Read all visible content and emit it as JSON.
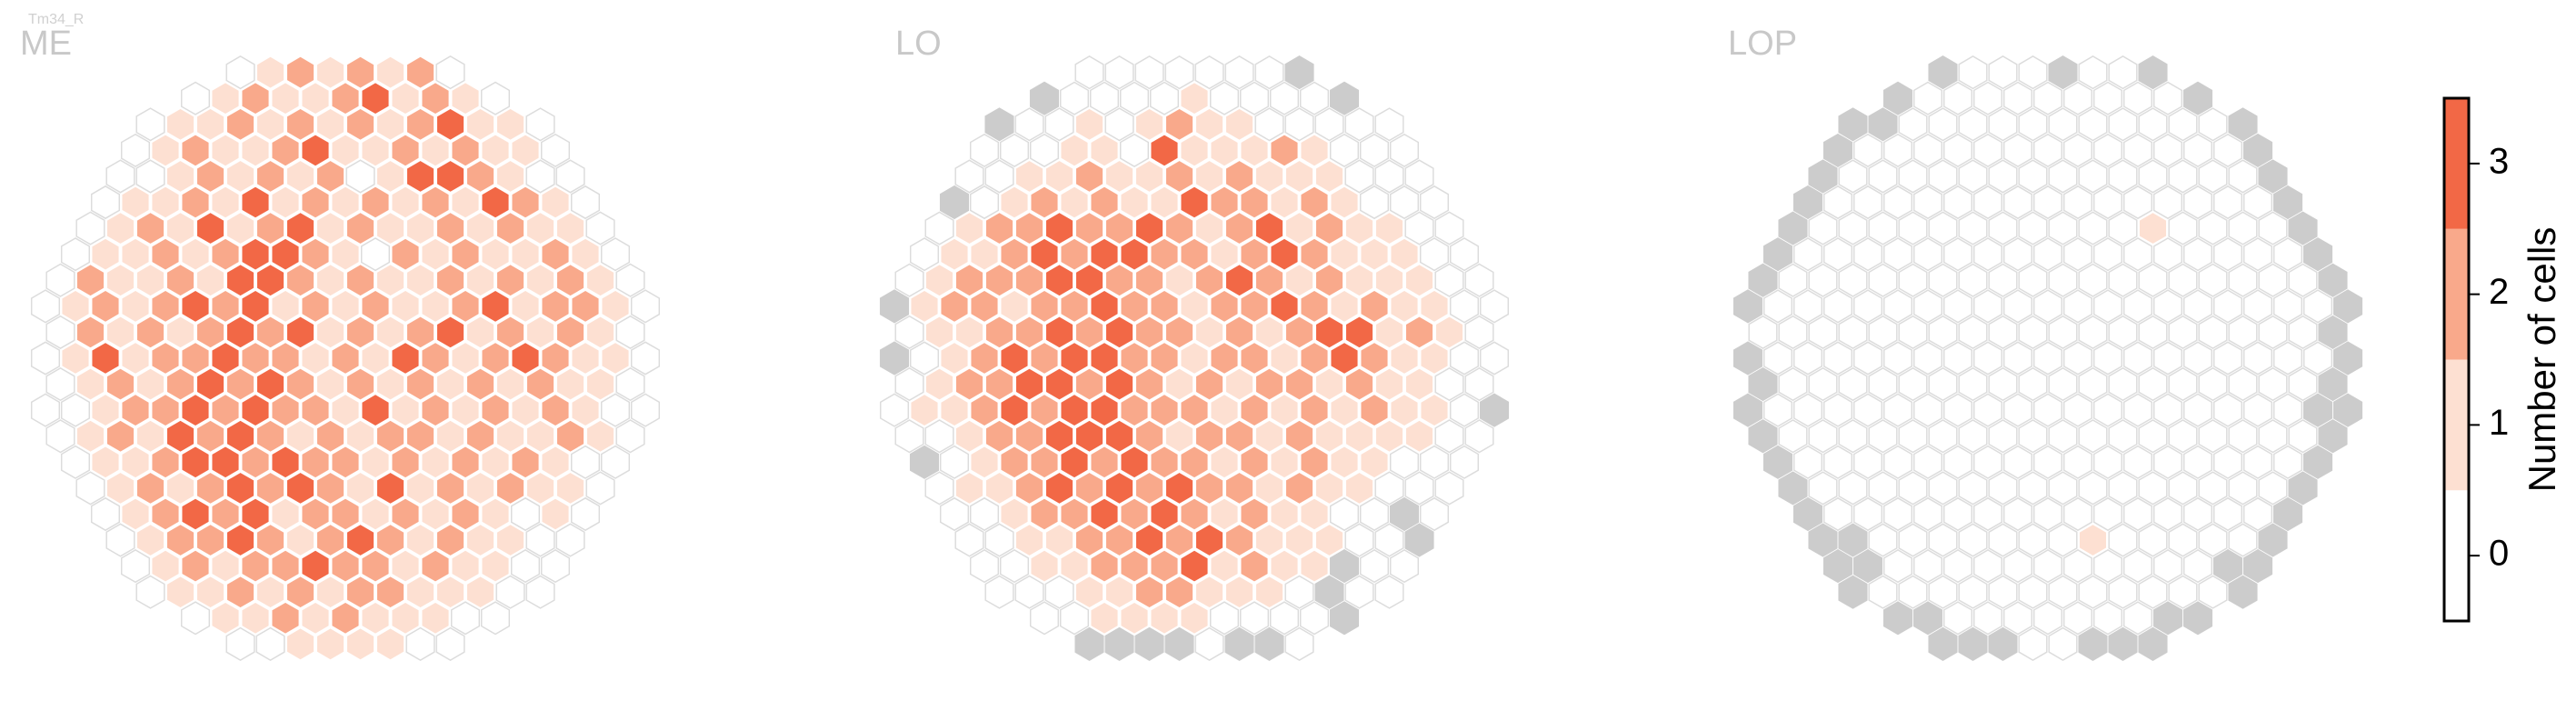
{
  "chart_data": {
    "type": "hexbin",
    "title": "Tm34_R",
    "colorbar": {
      "label": "Number of cells",
      "lim": [
        -0.5,
        3.5
      ],
      "ticks": [
        0,
        1,
        2,
        3
      ],
      "colors": [
        "#ffffff",
        "#fde0d2",
        "#f9a98b",
        "#f26846"
      ]
    },
    "missing_color": "#cccccc",
    "panels": [
      {
        "title": "ME",
        "rows": [
          [
            0,
            1,
            2,
            1,
            2,
            1,
            2,
            0
          ],
          [
            0,
            1,
            2,
            1,
            1,
            2,
            3,
            1,
            2,
            1,
            0
          ],
          [
            0,
            1,
            1,
            2,
            1,
            2,
            1,
            2,
            1,
            2,
            3,
            1,
            1,
            0
          ],
          [
            0,
            1,
            2,
            1,
            1,
            2,
            3,
            1,
            1,
            2,
            1,
            2,
            1,
            1,
            0
          ],
          [
            0,
            0,
            1,
            2,
            1,
            2,
            1,
            2,
            0,
            1,
            3,
            3,
            2,
            1,
            0,
            0
          ],
          [
            0,
            1,
            1,
            2,
            1,
            3,
            1,
            2,
            1,
            2,
            1,
            2,
            1,
            3,
            2,
            1,
            0
          ],
          [
            0,
            1,
            2,
            1,
            3,
            1,
            2,
            3,
            1,
            2,
            1,
            1,
            2,
            1,
            2,
            1,
            1,
            0
          ],
          [
            0,
            1,
            1,
            2,
            1,
            2,
            3,
            3,
            2,
            1,
            0,
            2,
            1,
            2,
            1,
            1,
            2,
            1,
            0
          ],
          [
            0,
            2,
            1,
            1,
            2,
            1,
            3,
            3,
            2,
            1,
            2,
            1,
            1,
            2,
            1,
            2,
            1,
            2,
            1,
            0
          ],
          [
            0,
            1,
            2,
            1,
            2,
            3,
            2,
            3,
            1,
            2,
            1,
            2,
            1,
            1,
            2,
            3,
            1,
            2,
            2,
            1,
            0
          ],
          [
            0,
            2,
            1,
            2,
            1,
            2,
            3,
            2,
            3,
            1,
            2,
            1,
            2,
            3,
            1,
            2,
            1,
            2,
            1,
            0
          ],
          [
            0,
            1,
            3,
            1,
            2,
            2,
            3,
            2,
            2,
            1,
            2,
            1,
            3,
            2,
            1,
            2,
            3,
            2,
            1,
            1,
            0
          ],
          [
            0,
            1,
            2,
            1,
            2,
            3,
            2,
            3,
            2,
            1,
            2,
            1,
            2,
            1,
            2,
            1,
            2,
            1,
            1,
            0
          ],
          [
            0,
            0,
            1,
            2,
            2,
            3,
            2,
            3,
            2,
            2,
            1,
            3,
            1,
            2,
            1,
            2,
            1,
            2,
            1,
            0,
            0
          ],
          [
            0,
            1,
            2,
            1,
            3,
            2,
            3,
            2,
            1,
            2,
            1,
            2,
            2,
            1,
            2,
            1,
            1,
            2,
            1,
            0
          ],
          [
            0,
            1,
            1,
            2,
            3,
            3,
            2,
            3,
            2,
            2,
            1,
            2,
            1,
            2,
            1,
            2,
            1,
            0,
            0
          ],
          [
            0,
            1,
            2,
            1,
            2,
            3,
            2,
            3,
            2,
            1,
            3,
            1,
            2,
            1,
            2,
            1,
            1,
            0
          ],
          [
            0,
            1,
            2,
            3,
            2,
            3,
            1,
            2,
            2,
            1,
            2,
            1,
            2,
            1,
            0,
            1,
            0
          ],
          [
            0,
            1,
            2,
            2,
            3,
            2,
            1,
            2,
            3,
            2,
            1,
            2,
            1,
            1,
            0,
            0
          ],
          [
            0,
            1,
            2,
            1,
            2,
            2,
            3,
            2,
            2,
            1,
            2,
            1,
            1,
            0,
            0
          ],
          [
            0,
            1,
            1,
            2,
            1,
            2,
            1,
            2,
            2,
            1,
            1,
            1,
            0,
            0
          ],
          [
            0,
            1,
            1,
            2,
            1,
            2,
            1,
            1,
            1,
            0,
            0
          ],
          [
            0,
            0,
            1,
            1,
            1,
            1,
            0,
            0
          ]
        ]
      },
      {
        "title": "LO",
        "rows": [
          [
            0,
            0,
            0,
            0,
            0,
            0,
            0,
            null
          ],
          [
            null,
            0,
            0,
            0,
            0,
            1,
            0,
            0,
            0,
            0,
            null
          ],
          [
            null,
            0,
            0,
            1,
            0,
            1,
            2,
            1,
            1,
            0,
            0,
            0,
            0,
            0
          ],
          [
            0,
            0,
            0,
            1,
            1,
            0,
            3,
            1,
            1,
            1,
            2,
            1,
            0,
            0,
            0
          ],
          [
            0,
            0,
            1,
            1,
            2,
            1,
            1,
            2,
            1,
            2,
            1,
            1,
            1,
            0,
            0,
            0
          ],
          [
            null,
            0,
            1,
            2,
            1,
            2,
            1,
            1,
            3,
            2,
            2,
            1,
            2,
            1,
            0,
            0,
            0
          ],
          [
            0,
            1,
            2,
            2,
            3,
            2,
            2,
            3,
            2,
            1,
            2,
            3,
            1,
            2,
            1,
            1,
            0,
            0
          ],
          [
            0,
            1,
            1,
            2,
            3,
            2,
            3,
            3,
            2,
            2,
            1,
            2,
            3,
            2,
            1,
            1,
            1,
            0,
            0
          ],
          [
            0,
            1,
            2,
            2,
            2,
            3,
            3,
            2,
            2,
            1,
            2,
            3,
            2,
            1,
            2,
            1,
            1,
            1,
            0,
            0
          ],
          [
            null,
            1,
            2,
            2,
            1,
            2,
            2,
            3,
            2,
            2,
            1,
            2,
            2,
            3,
            2,
            1,
            2,
            1,
            1,
            0,
            0
          ],
          [
            0,
            1,
            1,
            2,
            2,
            3,
            2,
            3,
            2,
            2,
            1,
            2,
            1,
            2,
            3,
            3,
            1,
            2,
            1,
            0
          ],
          [
            null,
            0,
            1,
            2,
            3,
            2,
            3,
            3,
            2,
            2,
            1,
            2,
            2,
            1,
            2,
            3,
            2,
            1,
            1,
            0,
            0
          ],
          [
            0,
            1,
            2,
            2,
            3,
            3,
            2,
            3,
            2,
            1,
            2,
            1,
            2,
            2,
            1,
            2,
            1,
            1,
            0,
            0
          ],
          [
            0,
            1,
            1,
            2,
            3,
            2,
            3,
            3,
            2,
            2,
            2,
            1,
            2,
            1,
            2,
            1,
            2,
            1,
            1,
            0,
            null
          ],
          [
            0,
            0,
            1,
            2,
            2,
            3,
            3,
            3,
            2,
            1,
            2,
            2,
            1,
            2,
            1,
            1,
            1,
            1,
            0,
            0
          ],
          [
            null,
            0,
            1,
            2,
            2,
            3,
            2,
            3,
            2,
            2,
            1,
            2,
            1,
            2,
            1,
            1,
            0,
            0,
            0
          ],
          [
            0,
            1,
            1,
            2,
            3,
            2,
            3,
            2,
            3,
            2,
            2,
            1,
            2,
            1,
            1,
            0,
            0,
            0
          ],
          [
            0,
            0,
            1,
            2,
            2,
            3,
            2,
            3,
            2,
            1,
            2,
            1,
            1,
            0,
            0,
            null,
            0
          ],
          [
            0,
            0,
            1,
            1,
            2,
            2,
            3,
            2,
            3,
            2,
            1,
            1,
            1,
            0,
            0,
            null
          ],
          [
            0,
            0,
            1,
            1,
            2,
            2,
            2,
            3,
            1,
            2,
            1,
            1,
            null,
            0,
            0
          ],
          [
            0,
            0,
            0,
            1,
            1,
            2,
            2,
            1,
            1,
            1,
            0,
            null,
            0,
            0
          ],
          [
            0,
            0,
            1,
            1,
            1,
            1,
            0,
            0,
            0,
            0,
            null
          ],
          [
            null,
            null,
            null,
            null,
            0,
            null,
            null,
            0
          ]
        ]
      },
      {
        "title": "LOP",
        "rows": [
          [
            null,
            0,
            0,
            0,
            null,
            0,
            0,
            null
          ],
          [
            null,
            0,
            0,
            0,
            0,
            0,
            0,
            0,
            0,
            0,
            null
          ],
          [
            null,
            null,
            0,
            0,
            0,
            0,
            0,
            0,
            0,
            0,
            0,
            0,
            0,
            null
          ],
          [
            null,
            0,
            0,
            0,
            0,
            0,
            0,
            0,
            0,
            0,
            0,
            0,
            0,
            0,
            null
          ],
          [
            null,
            0,
            0,
            0,
            0,
            0,
            0,
            0,
            0,
            0,
            0,
            0,
            0,
            0,
            0,
            null
          ],
          [
            null,
            0,
            0,
            0,
            0,
            0,
            0,
            0,
            0,
            0,
            0,
            0,
            0,
            0,
            0,
            0,
            null
          ],
          [
            null,
            0,
            0,
            0,
            0,
            0,
            0,
            0,
            0,
            0,
            0,
            0,
            1,
            0,
            0,
            0,
            0,
            null
          ],
          [
            null,
            0,
            0,
            0,
            0,
            0,
            0,
            0,
            0,
            0,
            0,
            0,
            0,
            0,
            0,
            0,
            0,
            0,
            null
          ],
          [
            null,
            0,
            0,
            0,
            0,
            0,
            0,
            0,
            0,
            0,
            0,
            0,
            0,
            0,
            0,
            0,
            0,
            0,
            0,
            null
          ],
          [
            null,
            0,
            0,
            0,
            0,
            0,
            0,
            0,
            0,
            0,
            0,
            0,
            0,
            0,
            0,
            0,
            0,
            0,
            0,
            0,
            null
          ],
          [
            0,
            0,
            0,
            0,
            0,
            0,
            0,
            0,
            0,
            0,
            0,
            0,
            0,
            0,
            0,
            0,
            0,
            0,
            0,
            null
          ],
          [
            null,
            0,
            0,
            0,
            0,
            0,
            0,
            0,
            0,
            0,
            0,
            0,
            0,
            0,
            0,
            0,
            0,
            0,
            0,
            0,
            null
          ],
          [
            null,
            0,
            0,
            0,
            0,
            0,
            0,
            0,
            0,
            0,
            0,
            0,
            0,
            0,
            0,
            0,
            0,
            0,
            0,
            null
          ],
          [
            null,
            0,
            0,
            0,
            0,
            0,
            0,
            0,
            0,
            0,
            0,
            0,
            0,
            0,
            0,
            0,
            0,
            0,
            0,
            null,
            null
          ],
          [
            null,
            0,
            0,
            0,
            0,
            0,
            0,
            0,
            0,
            0,
            0,
            0,
            0,
            0,
            0,
            0,
            0,
            0,
            0,
            null
          ],
          [
            null,
            0,
            0,
            0,
            0,
            0,
            0,
            0,
            0,
            0,
            0,
            0,
            0,
            0,
            0,
            0,
            0,
            0,
            null
          ],
          [
            null,
            0,
            0,
            0,
            0,
            0,
            0,
            0,
            0,
            0,
            0,
            0,
            0,
            0,
            0,
            0,
            0,
            null
          ],
          [
            null,
            0,
            0,
            0,
            0,
            0,
            0,
            0,
            0,
            0,
            0,
            0,
            0,
            0,
            0,
            0,
            null
          ],
          [
            null,
            null,
            0,
            0,
            0,
            0,
            0,
            0,
            0,
            1,
            0,
            0,
            0,
            0,
            0,
            null
          ],
          [
            null,
            null,
            0,
            0,
            0,
            0,
            0,
            0,
            0,
            0,
            0,
            0,
            0,
            null,
            null
          ],
          [
            null,
            0,
            0,
            0,
            0,
            0,
            0,
            0,
            0,
            0,
            0,
            0,
            0,
            null
          ],
          [
            null,
            null,
            0,
            0,
            0,
            0,
            0,
            0,
            0,
            null,
            null
          ],
          [
            null,
            null,
            null,
            0,
            0,
            null,
            null,
            null
          ]
        ]
      }
    ]
  }
}
